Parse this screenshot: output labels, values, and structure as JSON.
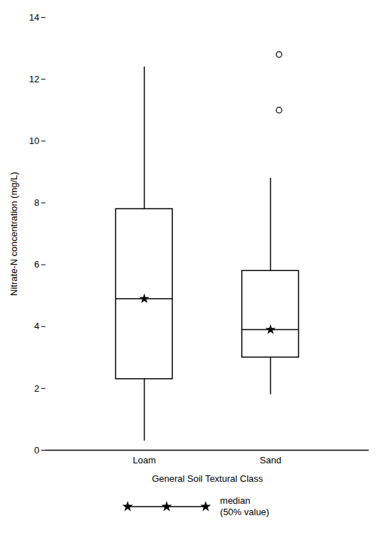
{
  "chart_data": {
    "type": "box",
    "categories": [
      "Loam",
      "Sand"
    ],
    "q1": [
      2.3,
      3.0
    ],
    "median": [
      4.9,
      3.9
    ],
    "q3": [
      7.8,
      5.8
    ],
    "whisker_low": [
      0.3,
      1.8
    ],
    "whisker_high": [
      12.4,
      8.8
    ],
    "outliers": [
      [],
      [
        11.0,
        12.8
      ]
    ],
    "xlabel": "General Soil Textural Class",
    "ylabel": "Nitrate-N concentration (mg/L)",
    "ylim": [
      0,
      14
    ],
    "yticks": [
      0,
      2,
      4,
      6,
      8,
      10,
      12,
      14
    ],
    "annotation": "median\n(50% value)",
    "color": "#000000"
  }
}
